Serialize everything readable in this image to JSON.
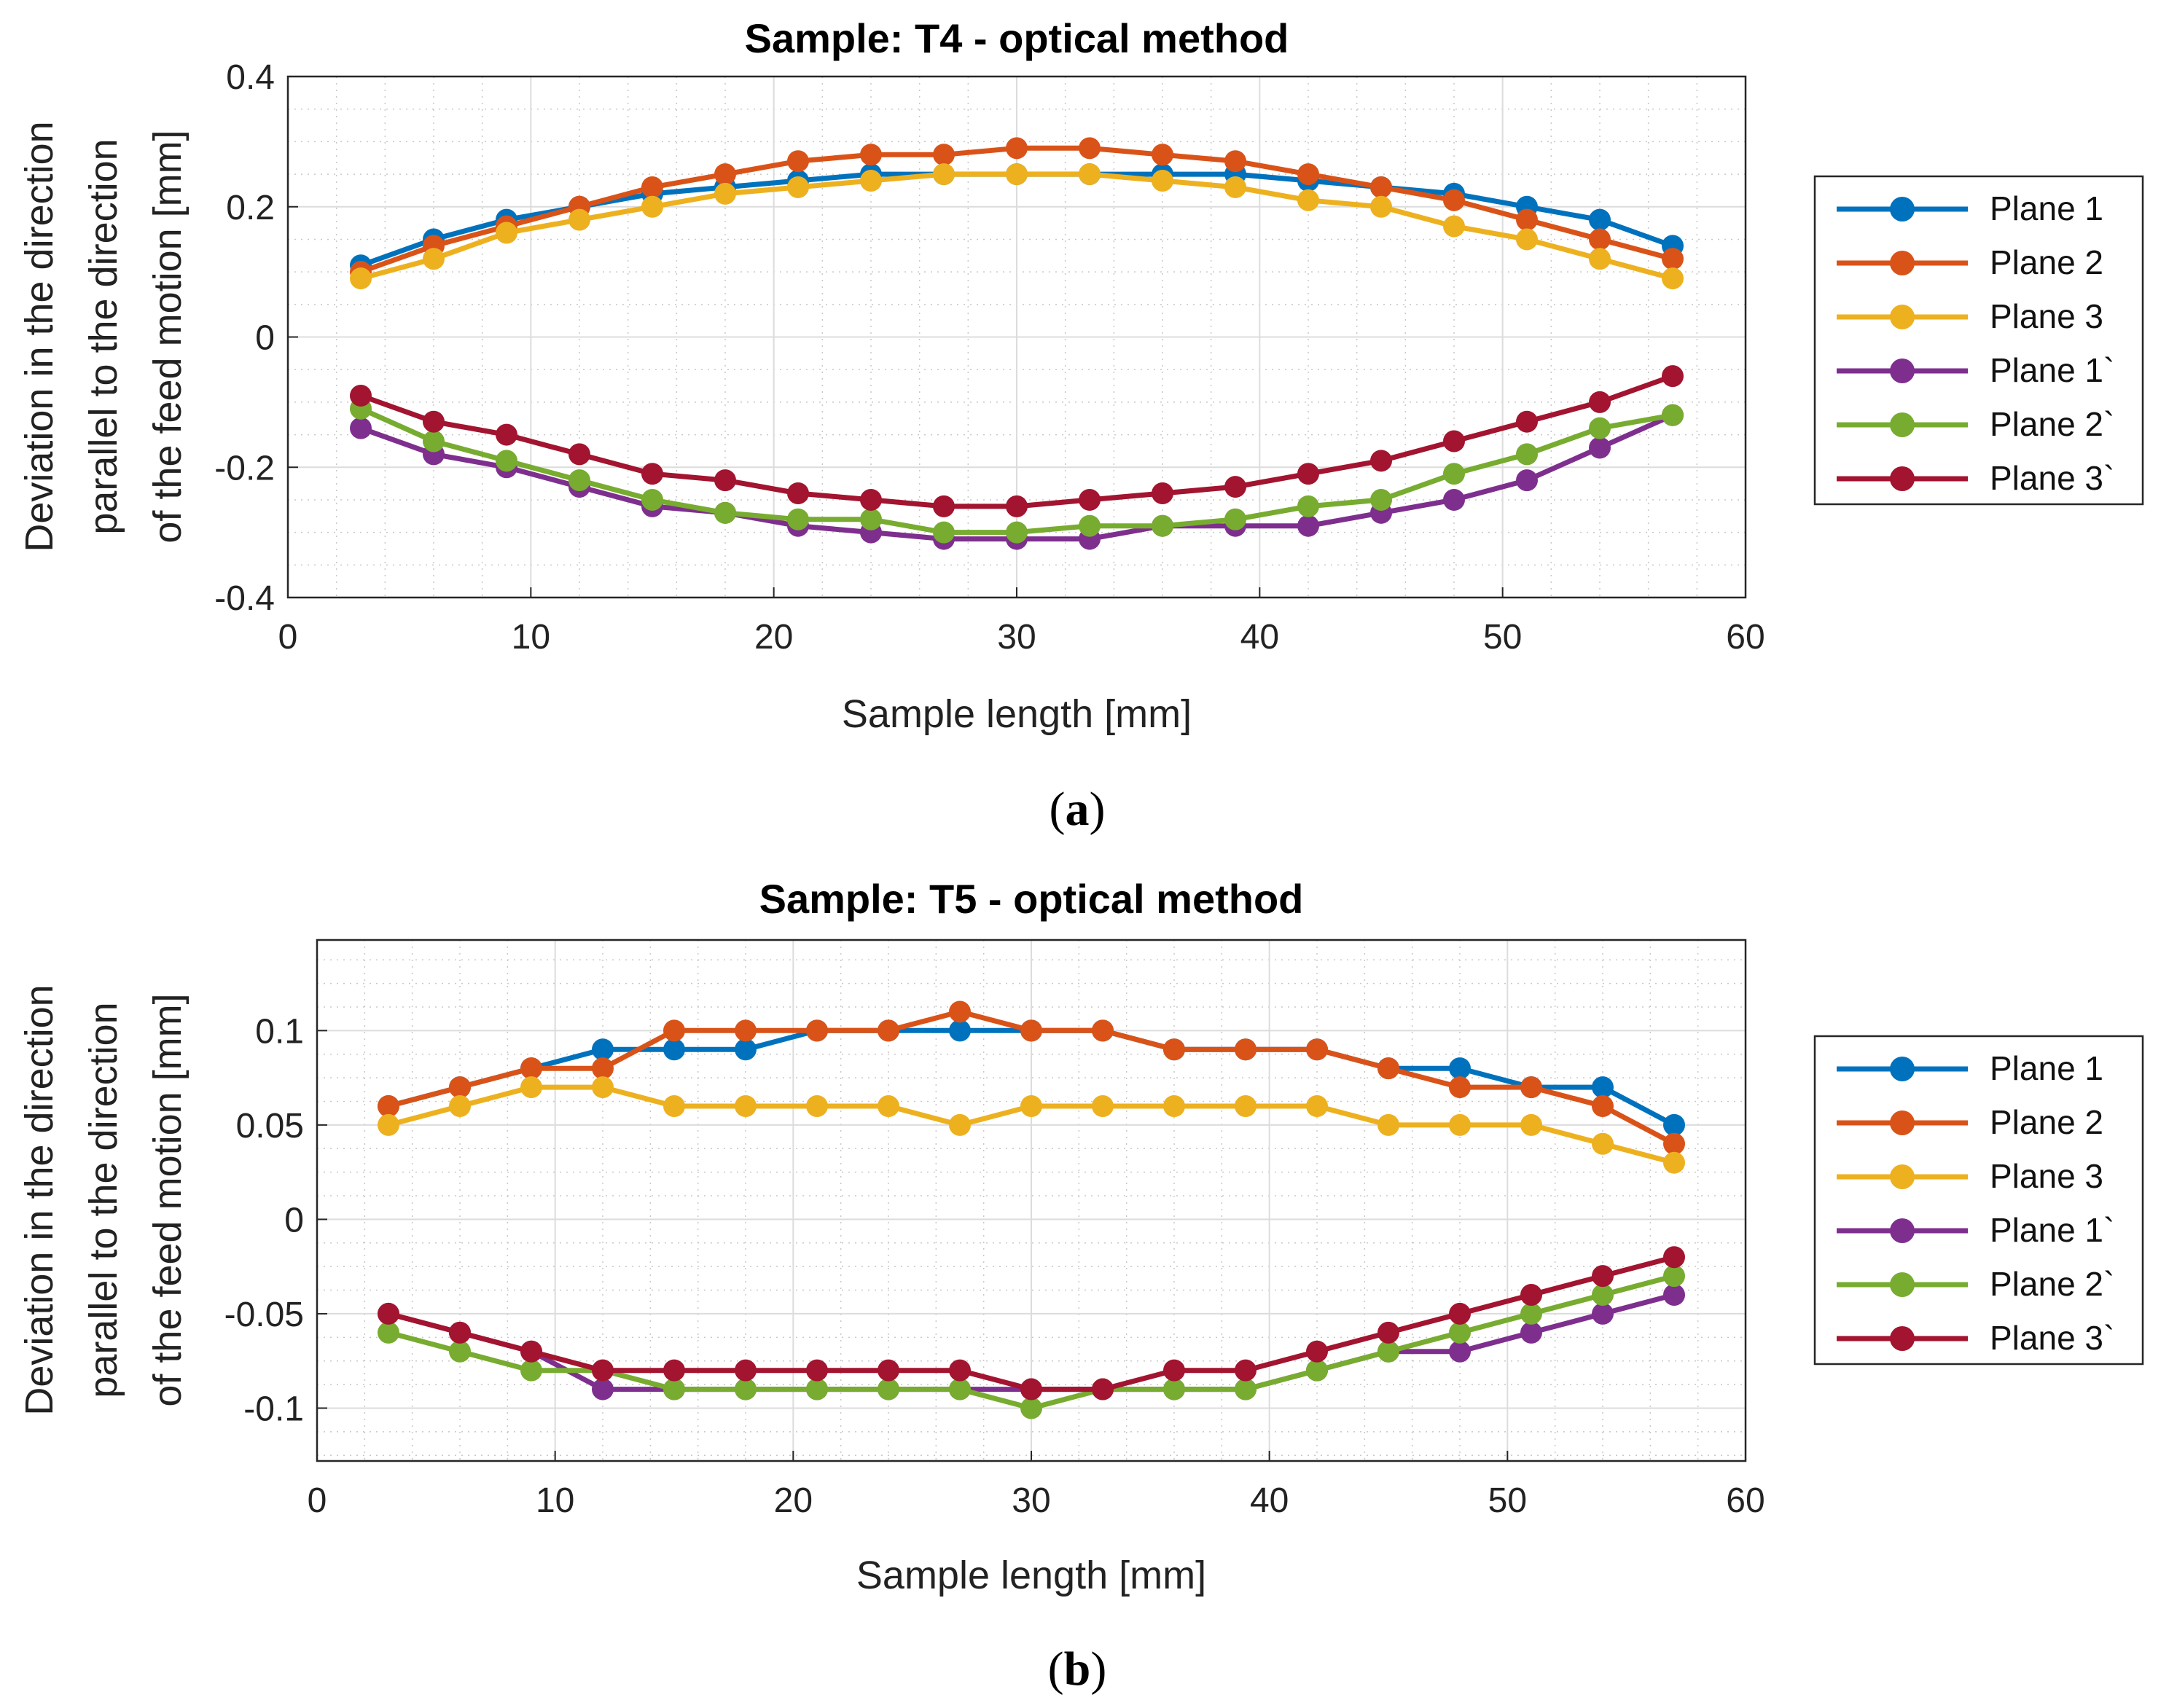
{
  "chart_data": [
    {
      "type": "line",
      "title": "Sample: T4 - optical method",
      "xlabel": "Sample length [mm]",
      "ylabel_lines": [
        "Deviation in the direction",
        "parallel to the direction",
        "of the feed motion [mm]"
      ],
      "xlim": [
        0,
        60
      ],
      "ylim": [
        -0.4,
        0.4
      ],
      "xticks": [
        0,
        10,
        20,
        30,
        40,
        50,
        60
      ],
      "xtick_labels": [
        "0",
        "10",
        "20",
        "30",
        "40",
        "50",
        "60"
      ],
      "yticks": [
        -0.4,
        -0.2,
        0,
        0.2,
        0.4
      ],
      "ytick_labels": [
        "-0.4",
        "-0.2",
        "0",
        "0.2",
        "0.4"
      ],
      "grid": true,
      "legend_position": "right",
      "caption_open": "(",
      "caption_letter": "a",
      "caption_close": ")",
      "x": [
        3,
        6,
        9,
        12,
        15,
        18,
        21,
        24,
        27,
        30,
        33,
        36,
        39,
        42,
        45,
        48,
        51,
        54,
        57
      ],
      "series": [
        {
          "name": "Plane 1",
          "color": "#0072BD",
          "values": [
            0.11,
            0.15,
            0.18,
            0.2,
            0.22,
            0.23,
            0.24,
            0.25,
            0.25,
            0.25,
            0.25,
            0.25,
            0.25,
            0.24,
            0.23,
            0.22,
            0.2,
            0.18,
            0.14
          ]
        },
        {
          "name": "Plane 2",
          "color": "#D95319",
          "values": [
            0.1,
            0.14,
            0.17,
            0.2,
            0.23,
            0.25,
            0.27,
            0.28,
            0.28,
            0.29,
            0.29,
            0.28,
            0.27,
            0.25,
            0.23,
            0.21,
            0.18,
            0.15,
            0.12
          ]
        },
        {
          "name": "Plane 3",
          "color": "#EDB120",
          "values": [
            0.09,
            0.12,
            0.16,
            0.18,
            0.2,
            0.22,
            0.23,
            0.24,
            0.25,
            0.25,
            0.25,
            0.24,
            0.23,
            0.21,
            0.2,
            0.17,
            0.15,
            0.12,
            0.09
          ]
        },
        {
          "name": "Plane 1`",
          "color": "#7E2F8E",
          "values": [
            -0.14,
            -0.18,
            -0.2,
            -0.23,
            -0.26,
            -0.27,
            -0.29,
            -0.3,
            -0.31,
            -0.31,
            -0.31,
            -0.29,
            -0.29,
            -0.29,
            -0.27,
            -0.25,
            -0.22,
            -0.17,
            -0.12
          ]
        },
        {
          "name": "Plane 2`",
          "color": "#77AC30",
          "values": [
            -0.11,
            -0.16,
            -0.19,
            -0.22,
            -0.25,
            -0.27,
            -0.28,
            -0.28,
            -0.3,
            -0.3,
            -0.29,
            -0.29,
            -0.28,
            -0.26,
            -0.25,
            -0.21,
            -0.18,
            -0.14,
            -0.12
          ]
        },
        {
          "name": "Plane 3`",
          "color": "#A2142F",
          "values": [
            -0.09,
            -0.13,
            -0.15,
            -0.18,
            -0.21,
            -0.22,
            -0.24,
            -0.25,
            -0.26,
            -0.26,
            -0.25,
            -0.24,
            -0.23,
            -0.21,
            -0.19,
            -0.16,
            -0.13,
            -0.1,
            -0.06
          ]
        }
      ]
    },
    {
      "type": "line",
      "title": "Sample: T5 - optical method",
      "xlabel": "Sample length [mm]",
      "ylabel_lines": [
        "Deviation in the direction",
        "parallel to the direction",
        "of the feed motion [mm]"
      ],
      "xlim": [
        0,
        60
      ],
      "ylim": [
        -0.128,
        0.148
      ],
      "xticks": [
        0,
        10,
        20,
        30,
        40,
        50,
        60
      ],
      "xtick_labels": [
        "0",
        "10",
        "20",
        "30",
        "40",
        "50",
        "60"
      ],
      "yticks": [
        -0.1,
        -0.05,
        0,
        0.05,
        0.1
      ],
      "ytick_labels": [
        "-0.1",
        "-0.05",
        "0",
        "0.05",
        "0.1"
      ],
      "grid": true,
      "legend_position": "right",
      "caption_open": "(",
      "caption_letter": "b",
      "caption_close": ")",
      "x": [
        3,
        6,
        9,
        12,
        15,
        18,
        21,
        24,
        27,
        30,
        33,
        36,
        39,
        42,
        45,
        48,
        51,
        54,
        57
      ],
      "series": [
        {
          "name": "Plane 1",
          "color": "#0072BD",
          "values": [
            0.06,
            0.07,
            0.08,
            0.09,
            0.09,
            0.09,
            0.1,
            0.1,
            0.1,
            0.1,
            0.1,
            0.09,
            0.09,
            0.09,
            0.08,
            0.08,
            0.07,
            0.07,
            0.05
          ]
        },
        {
          "name": "Plane 2",
          "color": "#D95319",
          "values": [
            0.06,
            0.07,
            0.08,
            0.08,
            0.1,
            0.1,
            0.1,
            0.1,
            0.11,
            0.1,
            0.1,
            0.09,
            0.09,
            0.09,
            0.08,
            0.07,
            0.07,
            0.06,
            0.04
          ]
        },
        {
          "name": "Plane 3",
          "color": "#EDB120",
          "values": [
            0.05,
            0.06,
            0.07,
            0.07,
            0.06,
            0.06,
            0.06,
            0.06,
            0.05,
            0.06,
            0.06,
            0.06,
            0.06,
            0.06,
            0.05,
            0.05,
            0.05,
            0.04,
            0.03
          ]
        },
        {
          "name": "Plane 1`",
          "color": "#7E2F8E",
          "values": [
            -0.05,
            -0.06,
            -0.07,
            -0.09,
            -0.09,
            -0.09,
            -0.09,
            -0.09,
            -0.09,
            -0.09,
            -0.09,
            -0.09,
            -0.09,
            -0.08,
            -0.07,
            -0.07,
            -0.06,
            -0.05,
            -0.04
          ]
        },
        {
          "name": "Plane 2`",
          "color": "#77AC30",
          "values": [
            -0.06,
            -0.07,
            -0.08,
            -0.08,
            -0.09,
            -0.09,
            -0.09,
            -0.09,
            -0.09,
            -0.1,
            -0.09,
            -0.09,
            -0.09,
            -0.08,
            -0.07,
            -0.06,
            -0.05,
            -0.04,
            -0.03
          ]
        },
        {
          "name": "Plane 3`",
          "color": "#A2142F",
          "values": [
            -0.05,
            -0.06,
            -0.07,
            -0.08,
            -0.08,
            -0.08,
            -0.08,
            -0.08,
            -0.08,
            -0.09,
            -0.09,
            -0.08,
            -0.08,
            -0.07,
            -0.06,
            -0.05,
            -0.04,
            -0.03,
            -0.02
          ]
        }
      ]
    }
  ]
}
